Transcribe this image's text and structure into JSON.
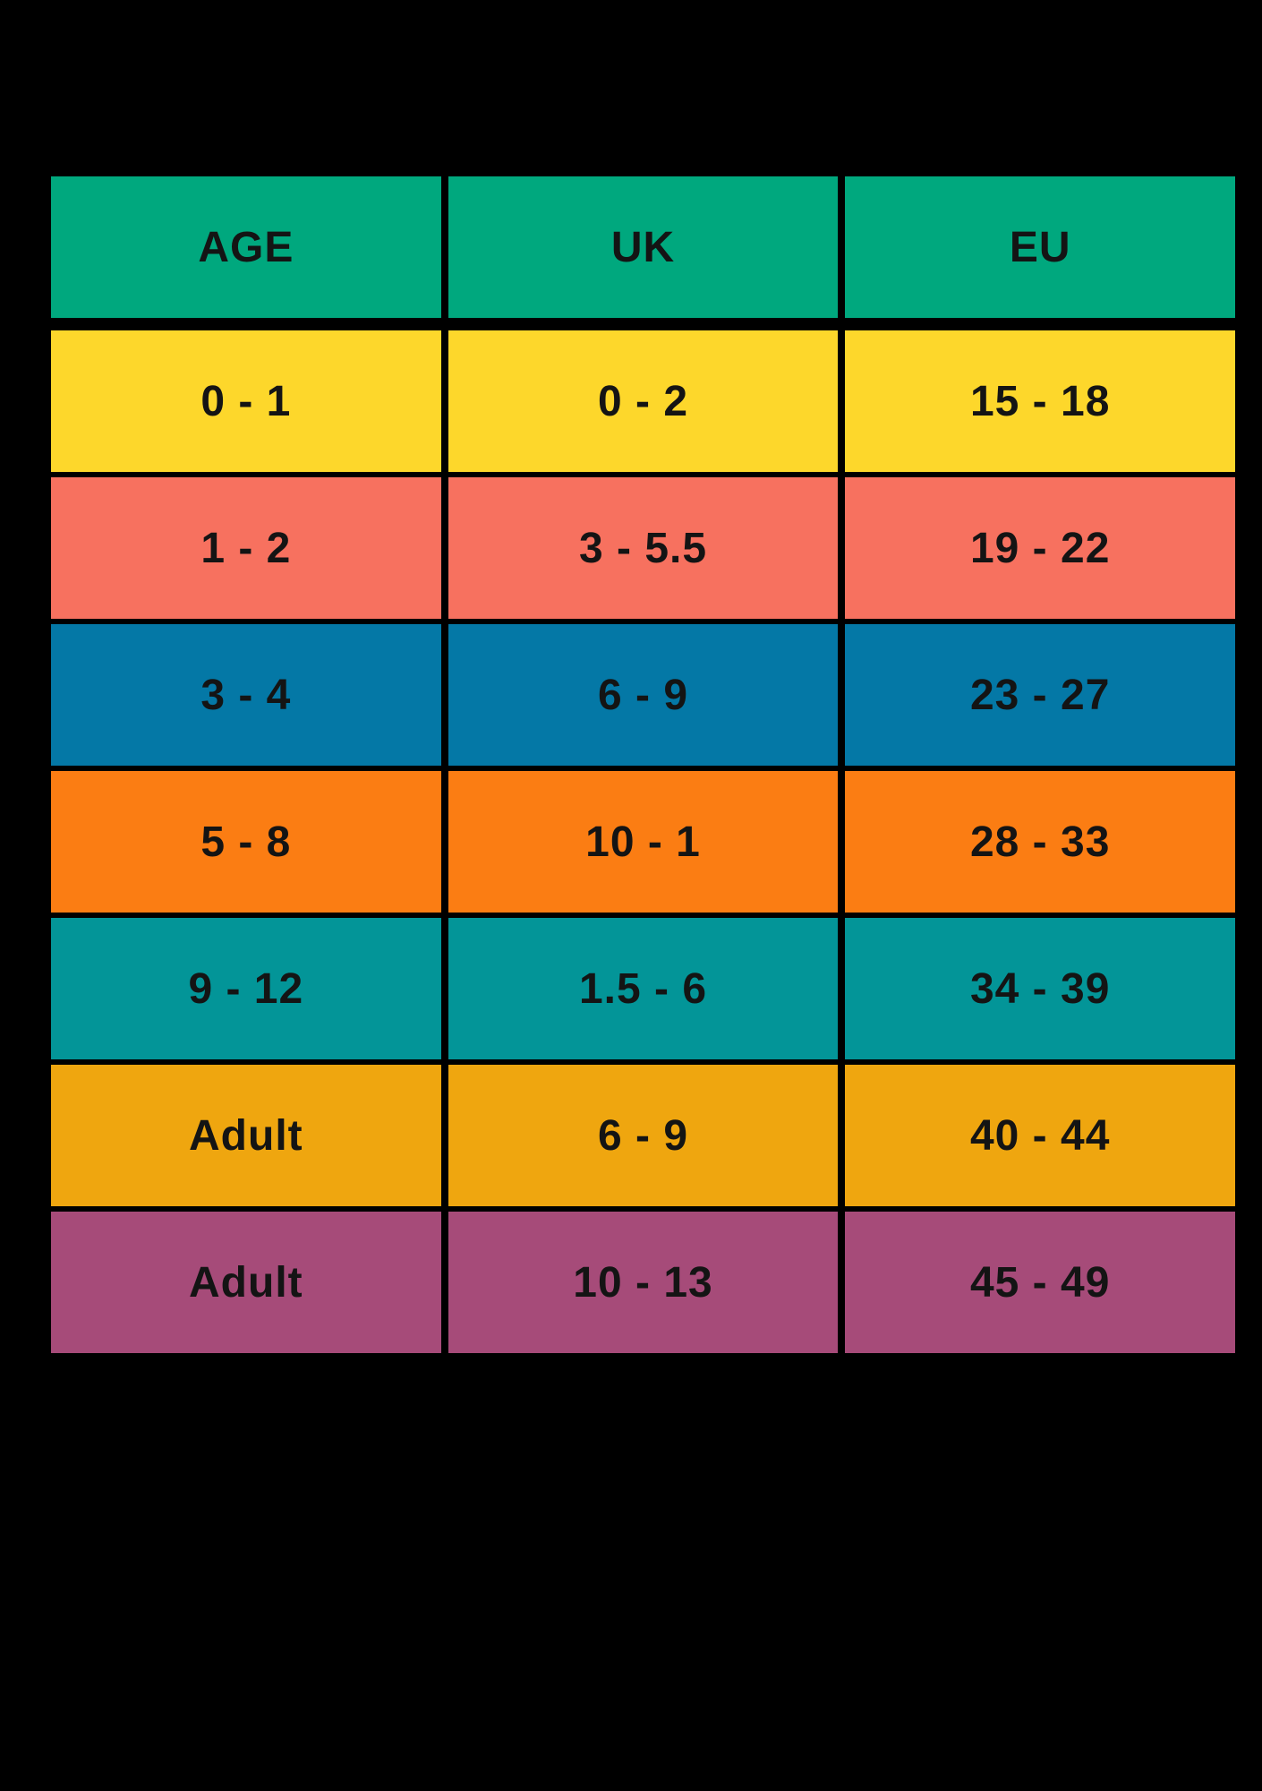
{
  "page": {
    "background": "#000000",
    "text_color": "#141414",
    "border_color": "#000000"
  },
  "table": {
    "header_bg": "#00A87E",
    "headers": {
      "age": "AGE",
      "uk": "UK",
      "eu": "EU"
    },
    "rows": [
      {
        "age": "0 - 1",
        "uk": "0 - 2",
        "eu": "15 - 18",
        "color": "#FDD72B"
      },
      {
        "age": "1 - 2",
        "uk": "3 - 5.5",
        "eu": "19 - 22",
        "color": "#F7715F"
      },
      {
        "age": "3 - 4",
        "uk": "6 - 9",
        "eu": "23 - 27",
        "color": "#0478A6"
      },
      {
        "age": "5 - 8",
        "uk": "10 - 1",
        "eu": "28 - 33",
        "color": "#FB7D13"
      },
      {
        "age": "9 - 12",
        "uk": "1.5 - 6",
        "eu": "34 - 39",
        "color": "#039598"
      },
      {
        "age": "Adult",
        "uk": "6 - 9",
        "eu": "40 - 44",
        "color": "#EFA60F"
      },
      {
        "age": "Adult",
        "uk": "10 - 13",
        "eu": "45 - 49",
        "color": "#A64B79"
      }
    ]
  },
  "chart_data": {
    "type": "table",
    "title": "",
    "columns": [
      "AGE",
      "UK",
      "EU"
    ],
    "rows": [
      [
        "0 - 1",
        "0 - 2",
        "15 - 18"
      ],
      [
        "1 - 2",
        "3 - 5.5",
        "19 - 22"
      ],
      [
        "3 - 4",
        "6 - 9",
        "23 - 27"
      ],
      [
        "5 - 8",
        "10 - 1",
        "28 - 33"
      ],
      [
        "9 - 12",
        "1.5 - 6",
        "34 - 39"
      ],
      [
        "Adult",
        "6 - 9",
        "40 - 44"
      ],
      [
        "Adult",
        "10 - 13",
        "45 - 49"
      ]
    ],
    "row_colors": [
      "#FDD72B",
      "#F7715F",
      "#0478A6",
      "#FB7D13",
      "#039598",
      "#EFA60F",
      "#A64B79"
    ],
    "header_color": "#00A87E",
    "background": "#000000",
    "layout": "3 equal columns, header row + 7 data rows, black grid lines"
  }
}
